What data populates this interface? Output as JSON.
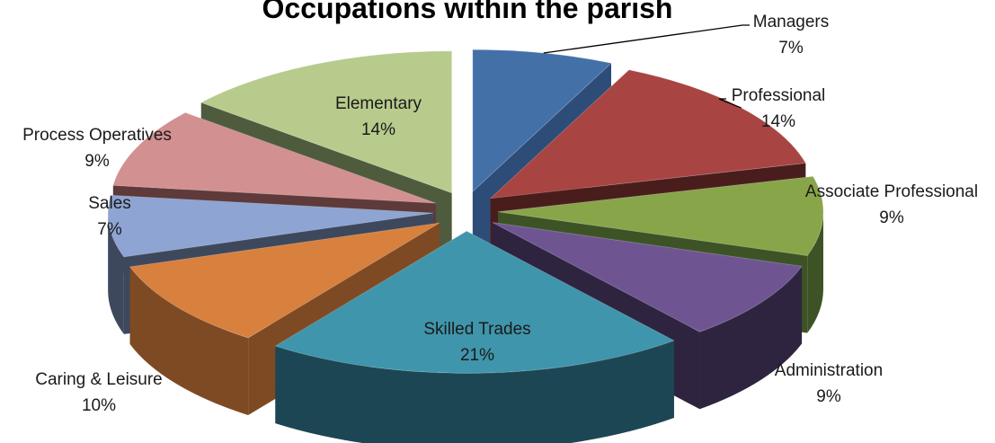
{
  "chart_data": {
    "type": "pie",
    "title": "Occupations within the parish",
    "categories": [
      "Managers",
      "Professional",
      "Associate Professional",
      "Administration",
      "Skilled Trades",
      "Caring & Leisure",
      "Sales",
      "Process Operatives",
      "Elementary"
    ],
    "values": [
      7,
      14,
      9,
      9,
      21,
      10,
      7,
      9,
      14
    ],
    "value_labels": [
      "7%",
      "14%",
      "9%",
      "9%",
      "21%",
      "10%",
      "7%",
      "9%",
      "14%"
    ],
    "unit": "%",
    "style": "3d-exploded",
    "colors": [
      "#4470a8",
      "#a84442",
      "#88a54a",
      "#6e5592",
      "#3f95ab",
      "#d8803d",
      "#8ea4d2",
      "#d29090",
      "#b7cb8d"
    ],
    "side_colors": [
      "#2d4d78",
      "#4a1d1d",
      "#3d5325",
      "#2e2440",
      "#1d4654",
      "#7e4a24",
      "#3e485d",
      "#5e3a3a",
      "#4f5b3d"
    ],
    "legend": "none"
  }
}
